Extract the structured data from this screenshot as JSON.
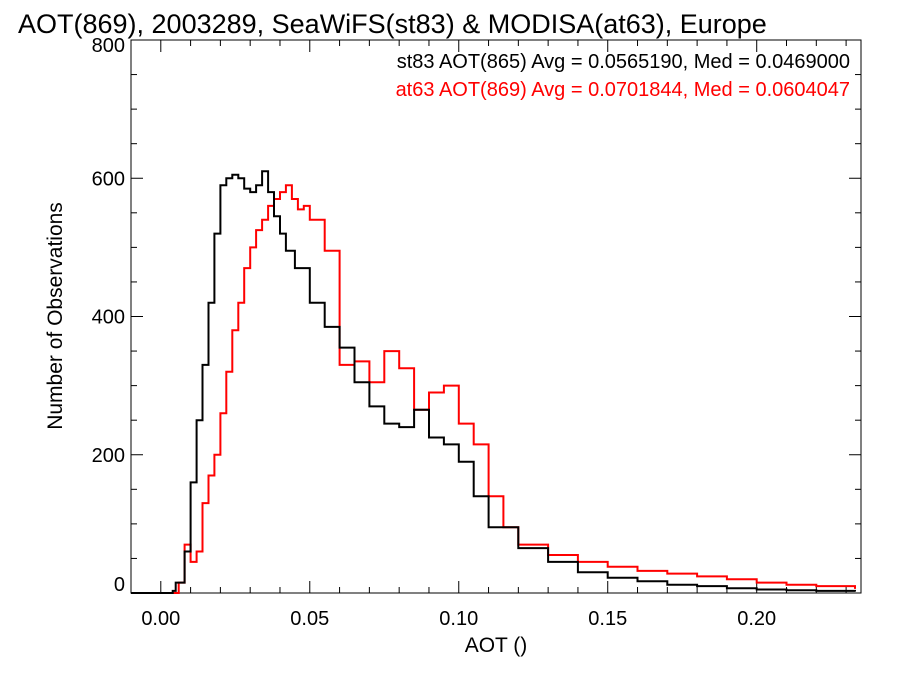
{
  "chart_data": {
    "type": "line",
    "title": "AOT(869), 2003289, SeaWiFS(st83) & MODISA(at63), Europe",
    "xlabel": "AOT ()",
    "ylabel": "Number of Observations",
    "xlim": [
      -0.01,
      0.235
    ],
    "ylim": [
      0,
      800
    ],
    "x_ticks": [
      "0.00",
      "0.05",
      "0.10",
      "0.15",
      "0.20"
    ],
    "y_ticks": [
      "0",
      "200",
      "400",
      "600",
      "800"
    ],
    "grid": false,
    "legend_position": "top-right",
    "series": [
      {
        "name": "st83",
        "color": "#000000",
        "legend_text": "st83 AOT(865) Avg = 0.0565190, Med = 0.0469000",
        "x": [
          -0.01,
          0.0,
          0.004,
          0.005,
          0.008,
          0.01,
          0.012,
          0.014,
          0.016,
          0.018,
          0.02,
          0.022,
          0.024,
          0.026,
          0.028,
          0.03,
          0.032,
          0.034,
          0.036,
          0.038,
          0.04,
          0.042,
          0.045,
          0.05,
          0.055,
          0.06,
          0.065,
          0.07,
          0.075,
          0.08,
          0.085,
          0.09,
          0.095,
          0.1,
          0.105,
          0.11,
          0.12,
          0.13,
          0.14,
          0.15,
          0.16,
          0.17,
          0.18,
          0.19,
          0.2,
          0.21,
          0.22,
          0.233
        ],
        "y": [
          0,
          0,
          3,
          15,
          60,
          160,
          250,
          330,
          420,
          520,
          590,
          600,
          605,
          600,
          585,
          580,
          590,
          610,
          580,
          545,
          520,
          495,
          470,
          420,
          385,
          355,
          305,
          270,
          245,
          240,
          265,
          225,
          215,
          190,
          140,
          95,
          65,
          45,
          30,
          22,
          17,
          12,
          10,
          7,
          5,
          4,
          3,
          2
        ]
      },
      {
        "name": "at63",
        "color": "#ff0000",
        "legend_text": "at63 AOT(869) Avg = 0.0701844, Med = 0.0604047",
        "x": [
          -0.01,
          0.004,
          0.006,
          0.008,
          0.01,
          0.012,
          0.014,
          0.016,
          0.018,
          0.02,
          0.022,
          0.024,
          0.026,
          0.028,
          0.03,
          0.032,
          0.034,
          0.036,
          0.038,
          0.04,
          0.042,
          0.044,
          0.046,
          0.048,
          0.05,
          0.055,
          0.06,
          0.065,
          0.07,
          0.075,
          0.08,
          0.085,
          0.09,
          0.095,
          0.1,
          0.105,
          0.11,
          0.115,
          0.12,
          0.13,
          0.14,
          0.15,
          0.16,
          0.17,
          0.18,
          0.19,
          0.2,
          0.21,
          0.22,
          0.233
        ],
        "y": [
          0,
          0,
          15,
          70,
          45,
          60,
          130,
          170,
          200,
          260,
          320,
          380,
          420,
          470,
          500,
          525,
          540,
          560,
          570,
          580,
          590,
          570,
          555,
          560,
          540,
          495,
          330,
          335,
          305,
          350,
          325,
          265,
          290,
          300,
          245,
          215,
          140,
          95,
          70,
          55,
          45,
          38,
          32,
          28,
          24,
          20,
          15,
          12,
          10,
          6
        ]
      }
    ]
  }
}
